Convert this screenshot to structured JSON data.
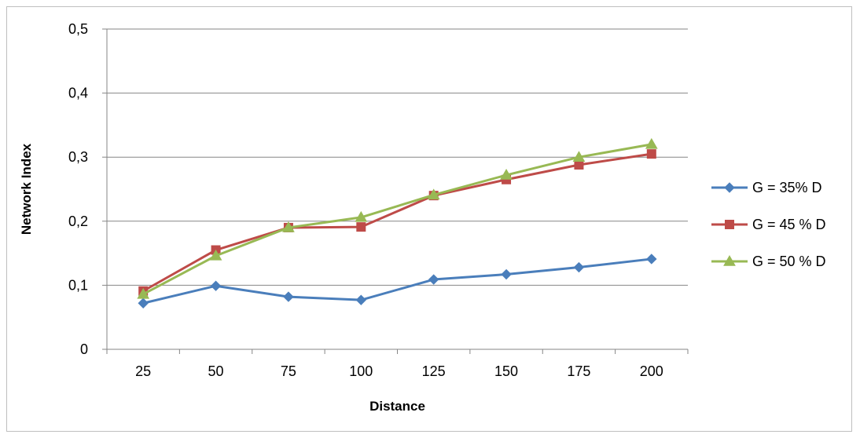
{
  "chart_data": {
    "type": "line",
    "categories": [
      "25",
      "50",
      "75",
      "100",
      "125",
      "150",
      "175",
      "200"
    ],
    "xlabel": "Distance",
    "ylabel": "Network Index",
    "ylim": [
      0,
      0.5
    ],
    "ytick_values": [
      0,
      0.1,
      0.2,
      0.3,
      0.4,
      0.5
    ],
    "ytick_labels": [
      "0",
      "0,1",
      "0,2",
      "0,3",
      "0,4",
      "0,5"
    ],
    "grid": true,
    "legend_position": "right",
    "series": [
      {
        "name": "G = 35% D",
        "color": "#4a7ebb",
        "marker": "diamond",
        "values": [
          0.072,
          0.099,
          0.082,
          0.077,
          0.109,
          0.117,
          0.128,
          0.141
        ]
      },
      {
        "name": "G = 45 % D",
        "color": "#be4b48",
        "marker": "square",
        "values": [
          0.091,
          0.155,
          0.19,
          0.191,
          0.24,
          0.265,
          0.288,
          0.305
        ]
      },
      {
        "name": "G = 50 % D",
        "color": "#98b954",
        "marker": "triangle",
        "values": [
          0.086,
          0.146,
          0.19,
          0.206,
          0.241,
          0.272,
          0.3,
          0.32
        ]
      }
    ]
  }
}
